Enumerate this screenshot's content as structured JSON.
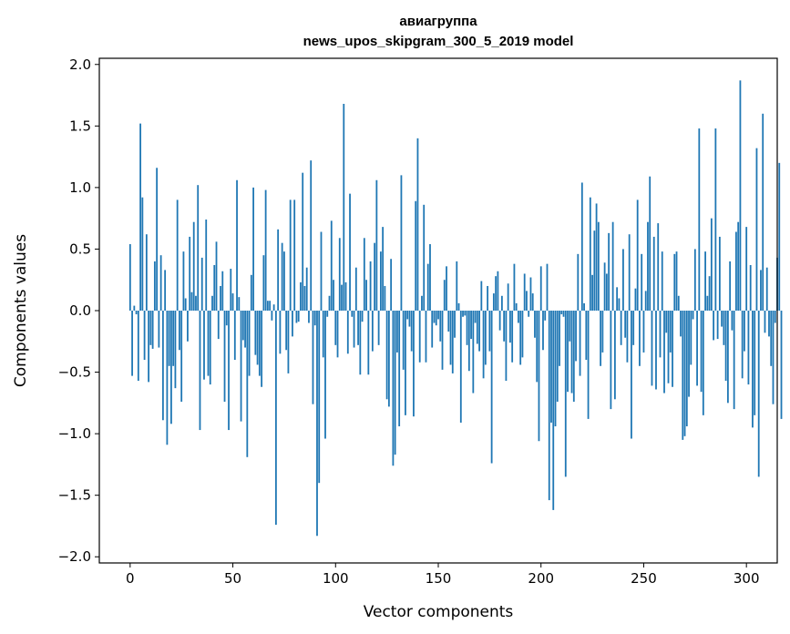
{
  "chart_data": {
    "type": "bar",
    "title": [
      "авиагруппа",
      "news_upos_skipgram_300_5_2019 model"
    ],
    "xlabel": "Vector components",
    "ylabel": "Components values",
    "xlim": [
      -15,
      315
    ],
    "ylim": [
      -2.05,
      2.05
    ],
    "xticks": [
      0,
      50,
      100,
      150,
      200,
      250,
      300
    ],
    "yticks": [
      2.0,
      1.5,
      1.0,
      0.5,
      0.0,
      -0.5,
      -1.0,
      -1.5,
      -2.0
    ],
    "ytick_labels": [
      "2.0",
      "1.5",
      "1.0",
      "0.5",
      "0.0",
      "−0.5",
      "−1.0",
      "−1.5",
      "−2.0"
    ],
    "bar_color": "#1f77b4",
    "grid": false,
    "legend": "none",
    "values": [
      0.54,
      -0.53,
      0.04,
      -0.03,
      -0.57,
      1.52,
      0.92,
      -0.4,
      0.62,
      -0.58,
      -0.28,
      -0.31,
      0.4,
      1.16,
      -0.3,
      0.45,
      -0.89,
      0.33,
      -1.09,
      -0.45,
      -0.92,
      -0.45,
      -0.63,
      0.9,
      -0.32,
      -0.74,
      0.48,
      0.1,
      -0.25,
      0.6,
      0.15,
      0.72,
      0.12,
      1.02,
      -0.97,
      0.43,
      -0.56,
      0.74,
      -0.53,
      -0.6,
      0.12,
      0.37,
      0.56,
      -0.23,
      0.2,
      0.32,
      -0.74,
      -0.12,
      -0.97,
      0.34,
      0.14,
      -0.4,
      1.06,
      0.11,
      -0.9,
      -0.24,
      -0.3,
      -1.19,
      -0.53,
      0.29,
      1.0,
      -0.36,
      -0.44,
      -0.53,
      -0.62,
      0.45,
      0.98,
      0.08,
      0.08,
      -0.08,
      0.05,
      -1.74,
      0.66,
      -0.35,
      0.55,
      0.48,
      -0.32,
      -0.51,
      0.9,
      -0.21,
      0.9,
      -0.1,
      -0.09,
      0.23,
      1.12,
      0.2,
      0.35,
      -0.1,
      1.22,
      -0.76,
      -0.12,
      -1.83,
      -1.4,
      0.64,
      -0.38,
      -1.04,
      -0.05,
      0.12,
      0.73,
      0.25,
      -0.28,
      -0.38,
      0.59,
      0.21,
      1.68,
      0.23,
      -0.35,
      0.95,
      -0.05,
      -0.3,
      0.35,
      -0.28,
      -0.52,
      -0.09,
      0.59,
      0.25,
      -0.52,
      0.4,
      -0.33,
      0.55,
      1.06,
      -0.28,
      0.48,
      0.68,
      0.2,
      -0.72,
      -0.78,
      0.42,
      -1.26,
      -1.17,
      -0.34,
      -0.94,
      1.1,
      -0.48,
      -0.85,
      -0.07,
      -0.13,
      -0.33,
      -0.86,
      0.89,
      1.4,
      -0.42,
      0.12,
      0.86,
      -0.42,
      0.38,
      0.54,
      -0.3,
      -0.1,
      -0.12,
      -0.07,
      -0.25,
      -0.48,
      0.25,
      0.36,
      -0.17,
      -0.44,
      -0.51,
      -0.22,
      0.4,
      0.06,
      -0.91,
      -0.05,
      -0.04,
      -0.28,
      -0.49,
      -0.23,
      -0.67,
      -0.1,
      -0.27,
      -0.33,
      0.24,
      -0.55,
      -0.44,
      0.2,
      -0.33,
      -1.24,
      0.14,
      0.28,
      0.32,
      -0.16,
      0.12,
      -0.25,
      -0.57,
      0.22,
      -0.26,
      -0.42,
      0.38,
      0.06,
      -0.1,
      -0.44,
      -0.38,
      0.3,
      0.16,
      -0.05,
      0.27,
      0.14,
      -0.22,
      -0.58,
      -1.06,
      0.36,
      -0.32,
      -0.08,
      0.38,
      -1.54,
      -0.91,
      -1.62,
      -0.94,
      -0.74,
      -0.45,
      -0.03,
      -0.05,
      -1.35,
      -0.66,
      -0.25,
      -0.67,
      -0.74,
      -0.41,
      0.46,
      -0.53,
      1.04,
      0.06,
      -0.4,
      -0.88,
      0.92,
      0.29,
      0.65,
      0.87,
      0.72,
      -0.45,
      -0.34,
      0.39,
      0.3,
      0.63,
      -0.8,
      0.72,
      -0.72,
      0.19,
      0.1,
      -0.28,
      0.5,
      -0.22,
      -0.42,
      0.62,
      -1.04,
      -0.28,
      0.18,
      0.9,
      -0.45,
      0.46,
      -0.34,
      0.16,
      0.72,
      1.09,
      -0.61,
      0.6,
      -0.64,
      0.71,
      -0.38,
      0.48,
      -0.67,
      -0.18,
      -0.59,
      -0.34,
      -0.62,
      0.46,
      0.48,
      0.12,
      -0.21,
      -1.05,
      -1.02,
      -0.94,
      -0.7,
      -0.44,
      -0.07,
      0.5,
      -0.61,
      1.48,
      -0.66,
      -0.85,
      0.48,
      0.12,
      0.28,
      0.75,
      -0.24,
      1.48,
      -0.23,
      0.6,
      -0.13,
      -0.28,
      -0.57,
      -0.75,
      0.4,
      -0.16,
      -0.8,
      0.64,
      0.72,
      1.87,
      -0.55,
      -0.33,
      0.68,
      -0.6,
      0.37,
      -0.95,
      -0.85,
      1.32,
      -1.35,
      0.33,
      1.6,
      -0.18,
      0.35,
      -0.21,
      -0.45,
      -0.76,
      -0.1,
      0.43,
      1.2,
      -0.88
    ]
  }
}
